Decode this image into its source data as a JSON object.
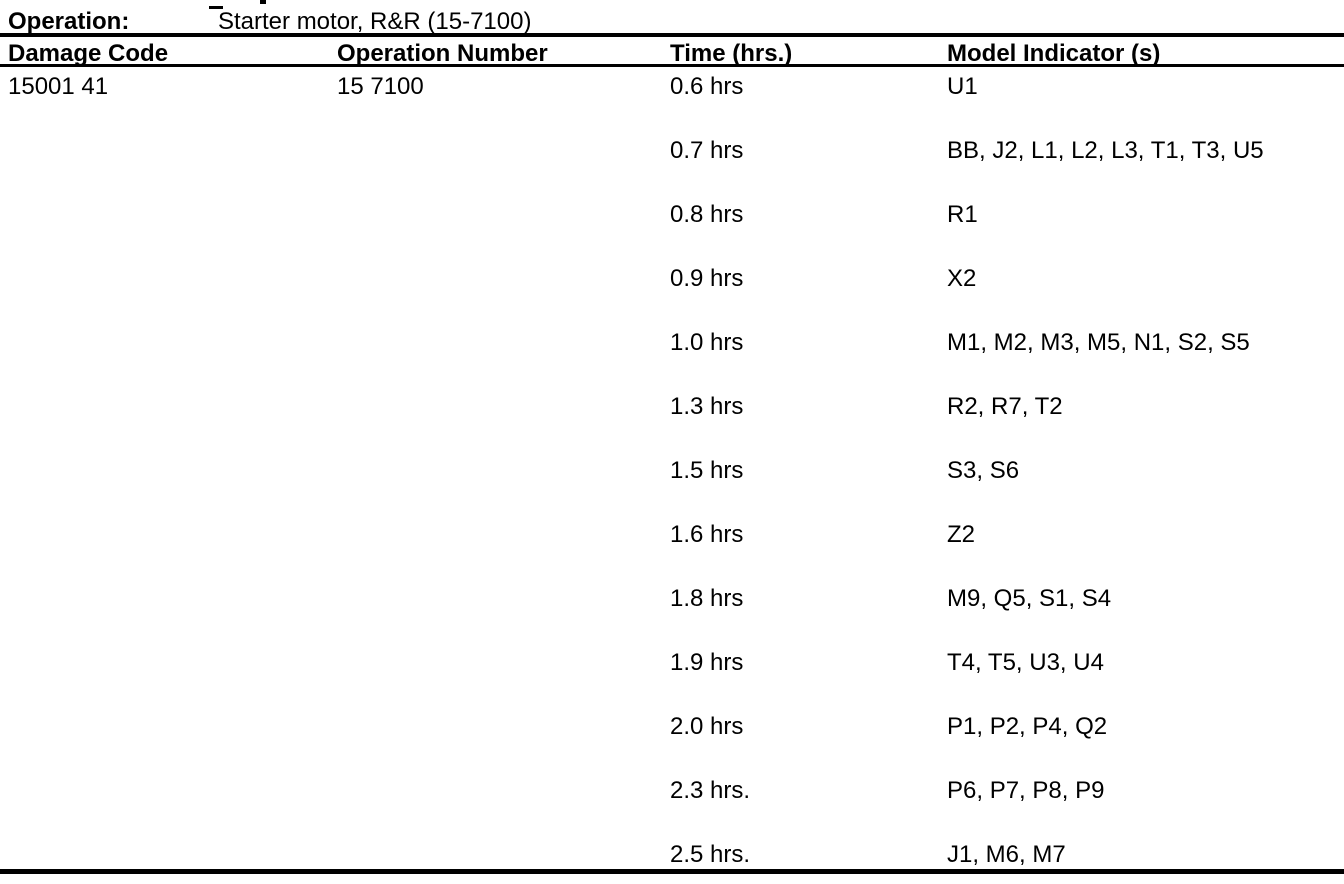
{
  "operation": {
    "label": "Operation:",
    "value": "Starter motor, R&R (15-7100)"
  },
  "table": {
    "headers": [
      "Damage Code",
      "Operation Number",
      "Time (hrs.)",
      "Model Indicator (s)"
    ],
    "damage_code": "15001 41",
    "operation_number": "15 7100",
    "rows": [
      {
        "time": "0.6 hrs",
        "models": "U1"
      },
      {
        "time": "0.7 hrs",
        "models": "BB, J2, L1, L2, L3, T1, T3, U5"
      },
      {
        "time": "0.8 hrs",
        "models": "R1"
      },
      {
        "time": "0.9 hrs",
        "models": "X2"
      },
      {
        "time": "1.0 hrs",
        "models": "M1, M2, M3, M5, N1, S2, S5"
      },
      {
        "time": "1.3 hrs",
        "models": "R2, R7, T2"
      },
      {
        "time": "1.5 hrs",
        "models": "S3, S6"
      },
      {
        "time": "1.6 hrs",
        "models": "Z2"
      },
      {
        "time": "1.8 hrs",
        "models": "M9, Q5, S1, S4"
      },
      {
        "time": "1.9 hrs",
        "models": "T4, T5, U3, U4"
      },
      {
        "time": "2.0 hrs",
        "models": "P1, P2, P4, Q2"
      },
      {
        "time": "2.3 hrs.",
        "models": "P6, P7, P8, P9"
      },
      {
        "time": "2.5 hrs.",
        "models": "J1, M6, M7"
      }
    ]
  }
}
